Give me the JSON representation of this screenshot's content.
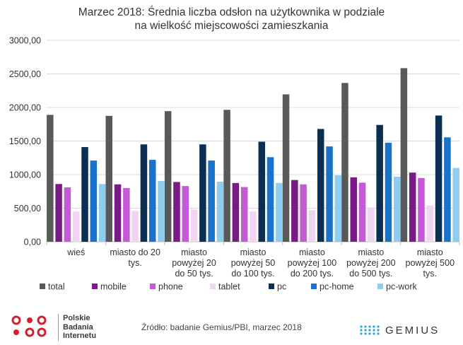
{
  "chart_data": {
    "type": "bar",
    "title_lines": [
      "Marzec 2018: Średnia liczba odsłon na użytkownika w podziale",
      "na wielkość miejscowości zamieszkania"
    ],
    "ylim": [
      0,
      3000
    ],
    "yticks": [
      "0,00",
      "500,00",
      "1000,00",
      "1500,00",
      "2000,00",
      "2500,00",
      "3000,00"
    ],
    "ytick_values": [
      0,
      500,
      1000,
      1500,
      2000,
      2500,
      3000
    ],
    "grid": true,
    "legend_position": "bottom",
    "categories": [
      [
        "wieś"
      ],
      [
        "miasto do 20",
        "tys."
      ],
      [
        "miasto",
        "powyżej 20",
        "do 50 tys."
      ],
      [
        "miasto",
        "powyżej 50",
        "do 100 tys."
      ],
      [
        "miasto",
        "powyżej 100",
        "do 200 tys."
      ],
      [
        "miasto",
        "powyżej 200",
        "do 500 tys."
      ],
      [
        "miasto",
        "powyżej 500",
        "tys."
      ]
    ],
    "series": [
      {
        "name": "total",
        "color": "#595959",
        "values": [
          1890,
          1875,
          1945,
          1965,
          2195,
          2365,
          2585
        ]
      },
      {
        "name": "mobile",
        "color": "#7a1a86",
        "values": [
          860,
          855,
          890,
          875,
          920,
          960,
          1030
        ]
      },
      {
        "name": "phone",
        "color": "#c45ad6",
        "values": [
          810,
          800,
          830,
          815,
          855,
          880,
          950
        ]
      },
      {
        "name": "tablet",
        "color": "#f0d4f4",
        "values": [
          450,
          460,
          480,
          450,
          470,
          510,
          540
        ]
      },
      {
        "name": "pc",
        "color": "#0b2e53",
        "values": [
          1410,
          1450,
          1450,
          1490,
          1680,
          1740,
          1880
        ]
      },
      {
        "name": "pc-home",
        "color": "#1a73c8",
        "values": [
          1210,
          1220,
          1210,
          1260,
          1420,
          1475,
          1555
        ]
      },
      {
        "name": "pc-work",
        "color": "#8fcdf0",
        "values": [
          860,
          905,
          895,
          875,
          990,
          970,
          1100
        ]
      }
    ]
  },
  "footer": {
    "logo_left_lines": [
      "Polskie",
      "Badania",
      "Internetu"
    ],
    "source": "Źródło: badanie Gemius/PBI, marzec 2018",
    "logo_right": "GEMIUS"
  },
  "colors": {
    "pbi_red": "#d3202c",
    "gemius_blue": "#2aa5d8"
  }
}
